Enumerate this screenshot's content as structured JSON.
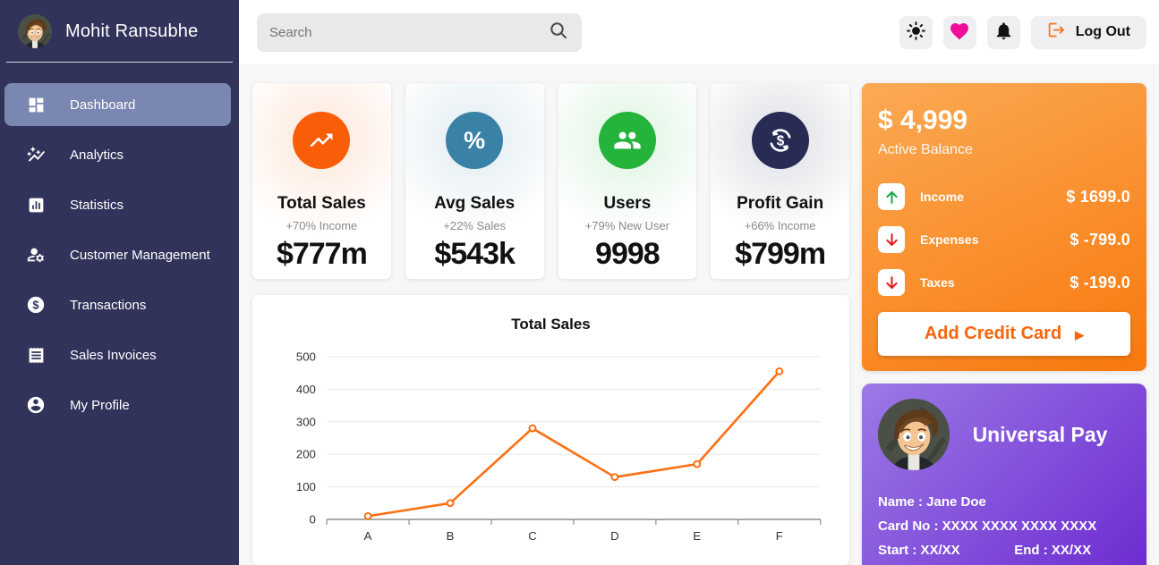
{
  "sidebar": {
    "bg_color": "#31335a",
    "active_bg_color": "#7a87b1",
    "user_name": "Mohit Ransubhe",
    "items": [
      {
        "label": "Dashboard",
        "icon": "dashboard-icon",
        "active": true
      },
      {
        "label": "Analytics",
        "icon": "analytics-icon",
        "active": false
      },
      {
        "label": "Statistics",
        "icon": "statistics-icon",
        "active": false
      },
      {
        "label": "Customer Management",
        "icon": "customer-management-icon",
        "active": false
      },
      {
        "label": "Transactions",
        "icon": "transactions-icon",
        "active": false
      },
      {
        "label": "Sales Invoices",
        "icon": "sales-invoices-icon",
        "active": false
      },
      {
        "label": "My Profile",
        "icon": "my-profile-icon",
        "active": false
      }
    ]
  },
  "topbar": {
    "search_placeholder": "Search",
    "logout_label": "Log Out",
    "heart_color": "#ee0e9a",
    "logout_icon_color": "#f97316"
  },
  "stats": {
    "cards": [
      {
        "title": "Total Sales",
        "subtitle": "+70% Income",
        "value": "$777m",
        "icon": "trending-up-icon",
        "color": "#f95d07"
      },
      {
        "title": "Avg Sales",
        "subtitle": "+22% Sales",
        "value": "$543k",
        "icon": "percent-icon",
        "color": "#3982a5"
      },
      {
        "title": "Users",
        "subtitle": "+79% New User",
        "value": "9998",
        "icon": "users-icon",
        "color": "#24b33b"
      },
      {
        "title": "Profit Gain",
        "subtitle": "+66% Income",
        "value": "$799m",
        "icon": "currency-sync-icon",
        "color": "#282c55"
      }
    ],
    "percent_glyph": "%"
  },
  "chart_data": {
    "type": "line",
    "title": "Total Sales",
    "categories": [
      "A",
      "B",
      "C",
      "D",
      "E",
      "F"
    ],
    "values": [
      10,
      50,
      280,
      130,
      170,
      455
    ],
    "series_color": "#fd7014",
    "point_style": "open-circle",
    "yticks": [
      0,
      100,
      200,
      300,
      400,
      500
    ],
    "ylim": [
      0,
      500
    ],
    "xlabel": "",
    "ylabel": "",
    "grid": true,
    "legend": false
  },
  "balance": {
    "amount": "$ 4,999",
    "label": "Active Balance",
    "rows": [
      {
        "label": "Income",
        "value": "$ 1699.0",
        "direction": "up",
        "arrow_color": "#18a94a"
      },
      {
        "label": "Expenses",
        "value": "$ -799.0",
        "direction": "down",
        "arrow_color": "#e51c1c"
      },
      {
        "label": "Taxes",
        "value": "$ -199.0",
        "direction": "down",
        "arrow_color": "#e51c1c"
      }
    ],
    "button_label": "Add Credit Card",
    "button_arrow": "▶",
    "gradient": [
      "#fbaa55",
      "#f8780c"
    ]
  },
  "pay_card": {
    "title": "Universal Pay",
    "name": "Name : Jane Doe",
    "card_no": "Card No : XXXX XXXX XXXX XXXX",
    "start": "Start : XX/XX",
    "end": "End : XX/XX",
    "gradient": [
      "#9b79e6",
      "#6c2ad0"
    ]
  }
}
